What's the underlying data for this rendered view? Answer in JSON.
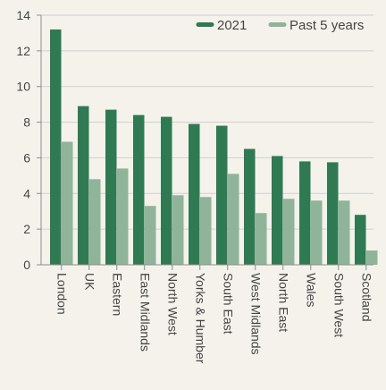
{
  "colors": {
    "background": "#f4f2eb",
    "series_2021": "#2f7a52",
    "series_past5": "#8fb49a",
    "grid": "#cfcfcf",
    "axis": "#8c8c8c",
    "text": "#444444"
  },
  "chart_data": {
    "type": "bar",
    "categories": [
      "London",
      "UK",
      "Eastern",
      "East Midlands",
      "North West",
      "Yorks & Humber",
      "South East",
      "West Midlands",
      "North East",
      "Wales",
      "South West",
      "Scotland"
    ],
    "series": [
      {
        "name": "2021",
        "values": [
          13.2,
          8.9,
          8.7,
          8.4,
          8.3,
          7.9,
          7.8,
          6.5,
          6.1,
          5.8,
          5.75,
          2.8
        ]
      },
      {
        "name": "Past 5 years",
        "values": [
          6.9,
          4.8,
          5.4,
          3.3,
          3.9,
          3.8,
          5.1,
          2.9,
          3.7,
          3.6,
          3.6,
          0.8
        ]
      }
    ],
    "yticks": [
      0,
      2,
      4,
      6,
      8,
      10,
      12,
      14
    ],
    "ylim": [
      0,
      14
    ],
    "grid": true,
    "legend_position": "top-right",
    "title": "",
    "xlabel": "",
    "ylabel": ""
  }
}
